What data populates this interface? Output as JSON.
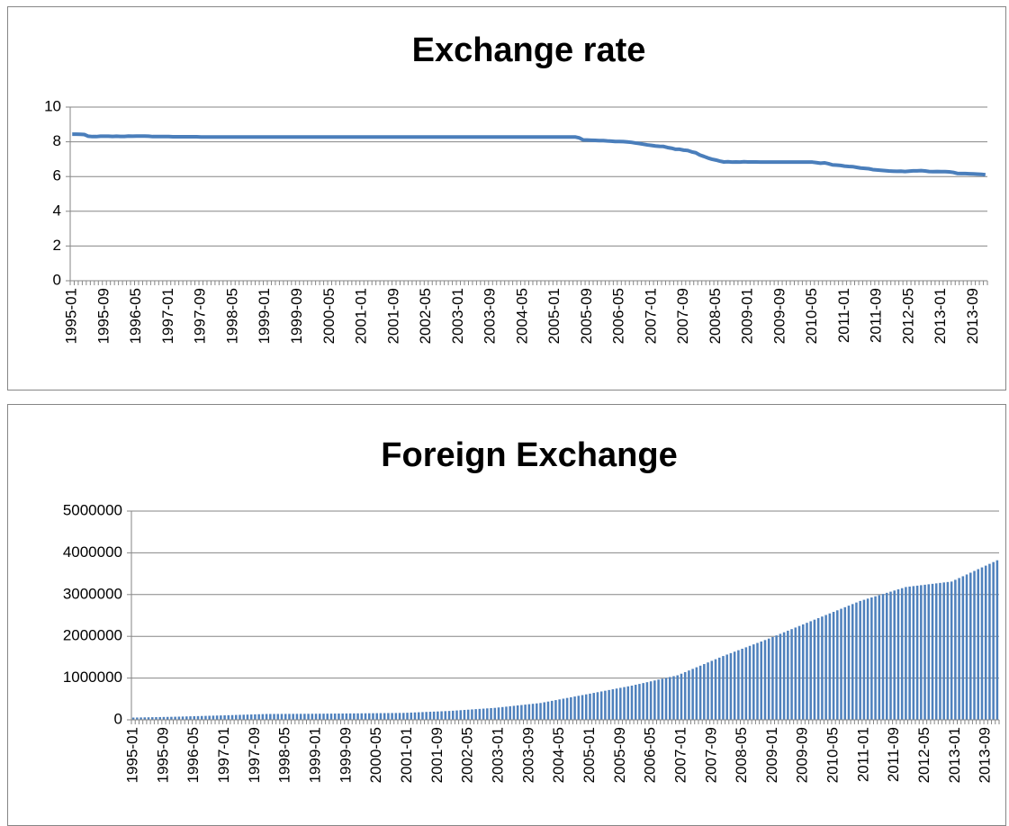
{
  "chart_data": [
    {
      "type": "line",
      "title": "Exchange rate",
      "color": "#4a7ebb",
      "grid": true,
      "ylim": [
        0,
        10
      ],
      "yticks": [
        0,
        2,
        4,
        6,
        8,
        10
      ],
      "categories": [
        "1995-01",
        null,
        null,
        null,
        null,
        null,
        null,
        null,
        "1995-09",
        null,
        null,
        null,
        null,
        null,
        null,
        null,
        "1996-05",
        null,
        null,
        null,
        null,
        null,
        null,
        null,
        "1997-01",
        null,
        null,
        null,
        null,
        null,
        null,
        null,
        "1997-09",
        null,
        null,
        null,
        null,
        null,
        null,
        null,
        "1998-05",
        null,
        null,
        null,
        null,
        null,
        null,
        null,
        "1999-01",
        null,
        null,
        null,
        null,
        null,
        null,
        null,
        "1999-09",
        null,
        null,
        null,
        null,
        null,
        null,
        null,
        "2000-05",
        null,
        null,
        null,
        null,
        null,
        null,
        null,
        "2001-01",
        null,
        null,
        null,
        null,
        null,
        null,
        null,
        "2001-09",
        null,
        null,
        null,
        null,
        null,
        null,
        null,
        "2002-05",
        null,
        null,
        null,
        null,
        null,
        null,
        null,
        "2003-01",
        null,
        null,
        null,
        null,
        null,
        null,
        null,
        "2003-09",
        null,
        null,
        null,
        null,
        null,
        null,
        null,
        "2004-05",
        null,
        null,
        null,
        null,
        null,
        null,
        null,
        "2005-01",
        null,
        null,
        null,
        null,
        null,
        null,
        null,
        "2005-09",
        null,
        null,
        null,
        null,
        null,
        null,
        null,
        "2006-05",
        null,
        null,
        null,
        null,
        null,
        null,
        null,
        "2007-01",
        null,
        null,
        null,
        null,
        null,
        null,
        null,
        "2007-09",
        null,
        null,
        null,
        null,
        null,
        null,
        null,
        "2008-05",
        null,
        null,
        null,
        null,
        null,
        null,
        null,
        "2009-01",
        null,
        null,
        null,
        null,
        null,
        null,
        null,
        "2009-09",
        null,
        null,
        null,
        null,
        null,
        null,
        null,
        "2010-05",
        null,
        null,
        null,
        null,
        null,
        null,
        null,
        "2011-01",
        null,
        null,
        null,
        null,
        null,
        null,
        null,
        "2011-09",
        null,
        null,
        null,
        null,
        null,
        null,
        null,
        "2012-05",
        null,
        null,
        null,
        null,
        null,
        null,
        null,
        "2013-01",
        null,
        null,
        null,
        null,
        null,
        null,
        null,
        "2013-09",
        null,
        null,
        null
      ],
      "values": [
        8.44,
        8.44,
        8.43,
        8.42,
        8.32,
        8.3,
        8.3,
        8.32,
        8.32,
        8.32,
        8.31,
        8.32,
        8.31,
        8.31,
        8.33,
        8.32,
        8.33,
        8.33,
        8.33,
        8.32,
        8.3,
        8.3,
        8.3,
        8.3,
        8.3,
        8.29,
        8.29,
        8.29,
        8.29,
        8.29,
        8.29,
        8.29,
        8.28,
        8.28,
        8.28,
        8.28,
        8.28,
        8.28,
        8.28,
        8.28,
        8.28,
        8.28,
        8.28,
        8.28,
        8.28,
        8.28,
        8.28,
        8.28,
        8.28,
        8.28,
        8.28,
        8.28,
        8.28,
        8.28,
        8.28,
        8.28,
        8.28,
        8.28,
        8.28,
        8.28,
        8.28,
        8.28,
        8.28,
        8.28,
        8.28,
        8.28,
        8.28,
        8.28,
        8.28,
        8.28,
        8.28,
        8.28,
        8.28,
        8.28,
        8.28,
        8.28,
        8.28,
        8.28,
        8.28,
        8.28,
        8.28,
        8.28,
        8.28,
        8.28,
        8.28,
        8.28,
        8.28,
        8.28,
        8.28,
        8.28,
        8.28,
        8.28,
        8.28,
        8.28,
        8.28,
        8.28,
        8.28,
        8.28,
        8.28,
        8.28,
        8.28,
        8.28,
        8.28,
        8.28,
        8.28,
        8.28,
        8.28,
        8.28,
        8.28,
        8.28,
        8.28,
        8.28,
        8.28,
        8.28,
        8.28,
        8.28,
        8.28,
        8.28,
        8.28,
        8.28,
        8.28,
        8.28,
        8.28,
        8.28,
        8.28,
        8.28,
        8.23,
        8.11,
        8.1,
        8.09,
        8.08,
        8.07,
        8.07,
        8.05,
        8.04,
        8.02,
        8.02,
        8.01,
        7.99,
        7.97,
        7.93,
        7.9,
        7.86,
        7.82,
        7.79,
        7.76,
        7.74,
        7.73,
        7.67,
        7.63,
        7.57,
        7.57,
        7.52,
        7.5,
        7.42,
        7.37,
        7.24,
        7.16,
        7.07,
        7.0,
        6.95,
        6.89,
        6.84,
        6.85,
        6.83,
        6.84,
        6.83,
        6.85,
        6.84,
        6.84,
        6.84,
        6.83,
        6.83,
        6.83,
        6.83,
        6.83,
        6.83,
        6.83,
        6.83,
        6.83,
        6.83,
        6.83,
        6.83,
        6.83,
        6.83,
        6.8,
        6.77,
        6.79,
        6.74,
        6.67,
        6.66,
        6.64,
        6.6,
        6.58,
        6.57,
        6.53,
        6.49,
        6.47,
        6.45,
        6.4,
        6.38,
        6.36,
        6.34,
        6.32,
        6.31,
        6.3,
        6.31,
        6.29,
        6.31,
        6.33,
        6.33,
        6.34,
        6.32,
        6.29,
        6.28,
        6.29,
        6.28,
        6.28,
        6.27,
        6.24,
        6.18,
        6.17,
        6.17,
        6.16,
        6.15,
        6.14,
        6.13,
        6.1
      ]
    },
    {
      "type": "bar",
      "title": "Foreign Exchange",
      "color": "#4f81bd",
      "grid": true,
      "ylim": [
        0,
        5000000
      ],
      "yticks": [
        0,
        1000000,
        2000000,
        3000000,
        4000000,
        5000000
      ],
      "categories": [
        "1995-01",
        null,
        null,
        null,
        null,
        null,
        null,
        null,
        "1995-09",
        null,
        null,
        null,
        null,
        null,
        null,
        null,
        "1996-05",
        null,
        null,
        null,
        null,
        null,
        null,
        null,
        "1997-01",
        null,
        null,
        null,
        null,
        null,
        null,
        null,
        "1997-09",
        null,
        null,
        null,
        null,
        null,
        null,
        null,
        "1998-05",
        null,
        null,
        null,
        null,
        null,
        null,
        null,
        "1999-01",
        null,
        null,
        null,
        null,
        null,
        null,
        null,
        "1999-09",
        null,
        null,
        null,
        null,
        null,
        null,
        null,
        "2000-05",
        null,
        null,
        null,
        null,
        null,
        null,
        null,
        "2001-01",
        null,
        null,
        null,
        null,
        null,
        null,
        null,
        "2001-09",
        null,
        null,
        null,
        null,
        null,
        null,
        null,
        "2002-05",
        null,
        null,
        null,
        null,
        null,
        null,
        null,
        "2003-01",
        null,
        null,
        null,
        null,
        null,
        null,
        null,
        "2003-09",
        null,
        null,
        null,
        null,
        null,
        null,
        null,
        "2004-05",
        null,
        null,
        null,
        null,
        null,
        null,
        null,
        "2005-01",
        null,
        null,
        null,
        null,
        null,
        null,
        null,
        "2005-09",
        null,
        null,
        null,
        null,
        null,
        null,
        null,
        "2006-05",
        null,
        null,
        null,
        null,
        null,
        null,
        null,
        "2007-01",
        null,
        null,
        null,
        null,
        null,
        null,
        null,
        "2007-09",
        null,
        null,
        null,
        null,
        null,
        null,
        null,
        "2008-05",
        null,
        null,
        null,
        null,
        null,
        null,
        null,
        "2009-01",
        null,
        null,
        null,
        null,
        null,
        null,
        null,
        "2009-09",
        null,
        null,
        null,
        null,
        null,
        null,
        null,
        "2010-05",
        null,
        null,
        null,
        null,
        null,
        null,
        null,
        "2011-01",
        null,
        null,
        null,
        null,
        null,
        null,
        null,
        "2011-09",
        null,
        null,
        null,
        null,
        null,
        null,
        null,
        "2012-05",
        null,
        null,
        null,
        null,
        null,
        null,
        null,
        "2013-01",
        null,
        null,
        null,
        null,
        null,
        null,
        null,
        "2013-09",
        null,
        null,
        null
      ],
      "values": [
        53400,
        55300,
        57100,
        59000,
        60800,
        62600,
        64400,
        66300,
        68100,
        69900,
        71800,
        73600,
        76200,
        78800,
        81500,
        84100,
        86700,
        89300,
        91900,
        94600,
        97200,
        99800,
        102400,
        105000,
        107900,
        110800,
        113700,
        116600,
        119600,
        122500,
        125400,
        128300,
        131200,
        134100,
        137000,
        139900,
        140300,
        140800,
        141200,
        141600,
        142000,
        142500,
        142900,
        143300,
        143700,
        144200,
        144600,
        145000,
        145800,
        146600,
        147400,
        148200,
        149000,
        149900,
        150700,
        151500,
        152300,
        153100,
        153900,
        154700,
        155600,
        156500,
        157400,
        158300,
        159200,
        160200,
        161100,
        162000,
        162900,
        163800,
        164700,
        165600,
        169500,
        173400,
        177200,
        181100,
        185000,
        188900,
        192800,
        196700,
        200500,
        204400,
        208300,
        212200,
        218400,
        224600,
        230800,
        236900,
        243100,
        249300,
        255500,
        261700,
        267800,
        274000,
        280200,
        286400,
        296100,
        305900,
        315600,
        325400,
        335100,
        344800,
        354600,
        364300,
        374100,
        383800,
        393500,
        403300,
        420500,
        437700,
        455000,
        472200,
        489400,
        506700,
        523900,
        541100,
        558300,
        575600,
        592800,
        609900,
        627300,
        644700,
        662100,
        679600,
        697000,
        714400,
        731800,
        749200,
        766600,
        784100,
        801500,
        818900,
        839500,
        860100,
        880700,
        901300,
        921900,
        942500,
        963100,
        983700,
        1004400,
        1025000,
        1045600,
        1066300,
        1104800,
        1143300,
        1181800,
        1220200,
        1258700,
        1297200,
        1335700,
        1374200,
        1412700,
        1451200,
        1489700,
        1528200,
        1563000,
        1597800,
        1632700,
        1667500,
        1702300,
        1737100,
        1771900,
        1806700,
        1841600,
        1876400,
        1911200,
        1946000,
        1983800,
        2021500,
        2059300,
        2097000,
        2134800,
        2172500,
        2210300,
        2248000,
        2285800,
        2323500,
        2361300,
        2399200,
        2436500,
        2473800,
        2511200,
        2548500,
        2585800,
        2623100,
        2660400,
        2697700,
        2735100,
        2772400,
        2809700,
        2847300,
        2875100,
        2902900,
        2930700,
        2958500,
        2986300,
        3014100,
        3041900,
        3069700,
        3097500,
        3125300,
        3153100,
        3181100,
        3192000,
        3202900,
        3213800,
        3224700,
        3235600,
        3246500,
        3257400,
        3268300,
        3279200,
        3290100,
        3301000,
        3311600,
        3354100,
        3396500,
        3439000,
        3481400,
        3523900,
        3566400,
        3608800,
        3651300,
        3693700,
        3736200,
        3778700,
        3821300
      ]
    }
  ]
}
